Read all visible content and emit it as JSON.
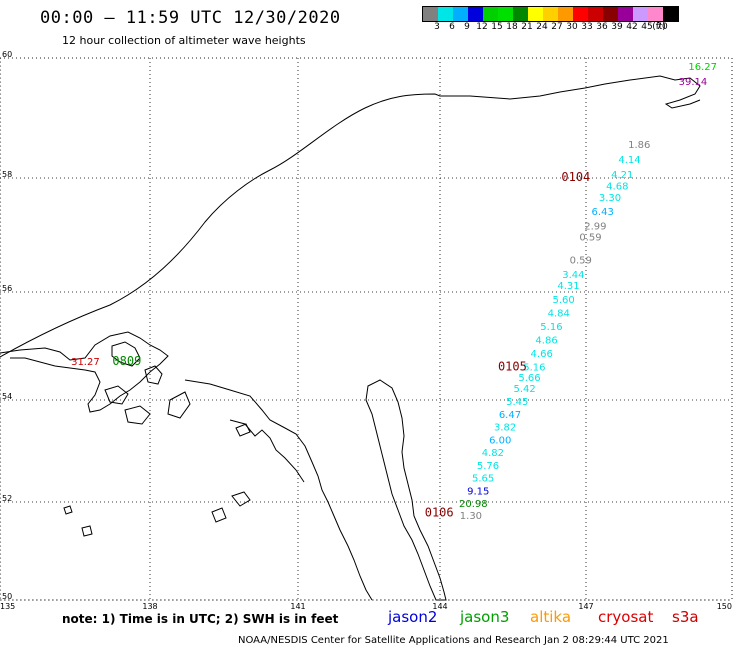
{
  "header": {
    "title": "00:00 — 11:59 UTC 12/30/2020",
    "subtitle": "12 hour collection of altimeter wave heights"
  },
  "legend": {
    "unit": "(ft)",
    "bins": [
      {
        "label": "3",
        "color": "#808080"
      },
      {
        "label": "6",
        "color": "#00e5e5"
      },
      {
        "label": "9",
        "color": "#00b0ff"
      },
      {
        "label": "12",
        "color": "#0000dd"
      },
      {
        "label": "15",
        "color": "#00d000"
      },
      {
        "label": "18",
        "color": "#00e000"
      },
      {
        "label": "21",
        "color": "#008800"
      },
      {
        "label": "24",
        "color": "#ffff00"
      },
      {
        "label": "27",
        "color": "#ffd000"
      },
      {
        "label": "30",
        "color": "#ff9900"
      },
      {
        "label": "33",
        "color": "#ff0000"
      },
      {
        "label": "36",
        "color": "#cc0000"
      },
      {
        "label": "39",
        "color": "#880000"
      },
      {
        "label": "42",
        "color": "#990099"
      },
      {
        "label": "45",
        "color": "#cc99ff"
      },
      {
        "label": "70",
        "color": "#ff88cc"
      },
      {
        "label": "",
        "color": "#000000"
      }
    ]
  },
  "axes": {
    "lon_ticks": [
      "135",
      "138",
      "141",
      "144",
      "147",
      "150"
    ],
    "lat_ticks": [
      "60",
      "58",
      "56",
      "54",
      "52",
      "50"
    ]
  },
  "tracks": [
    {
      "time": "0104",
      "color": "#880000",
      "lon": 146.8,
      "lat": 57.95
    },
    {
      "time": "0105",
      "color": "#880000",
      "lon": 145.5,
      "lat": 54.55
    },
    {
      "time": "0106",
      "color": "#880000",
      "lon": 144.0,
      "lat": 51.7
    },
    {
      "time": "0809",
      "color": "#008800",
      "lon": 137.6,
      "lat": 54.65
    }
  ],
  "observations": [
    {
      "value": "16.27",
      "color": "#00d000",
      "lon": 149.4,
      "lat": 59.8
    },
    {
      "value": "39.14",
      "color": "#990099",
      "lon": 149.2,
      "lat": 59.55
    },
    {
      "value": "1.86",
      "color": "#808080",
      "lon": 148.1,
      "lat": 58.5
    },
    {
      "value": "4.14",
      "color": "#00e5e5",
      "lon": 147.9,
      "lat": 58.25
    },
    {
      "value": "4.21",
      "color": "#00e5e5",
      "lon": 147.75,
      "lat": 58.0
    },
    {
      "value": "4.68",
      "color": "#00e5e5",
      "lon": 147.65,
      "lat": 57.8
    },
    {
      "value": "3.30",
      "color": "#00e5e5",
      "lon": 147.5,
      "lat": 57.6
    },
    {
      "value": "6.43",
      "color": "#00b0ff",
      "lon": 147.35,
      "lat": 57.35
    },
    {
      "value": "2.99",
      "color": "#808080",
      "lon": 147.2,
      "lat": 57.1
    },
    {
      "value": "0.59",
      "color": "#808080",
      "lon": 147.1,
      "lat": 56.9
    },
    {
      "value": "0.59",
      "color": "#808080",
      "lon": 146.9,
      "lat": 56.5
    },
    {
      "value": "3.44",
      "color": "#00e5e5",
      "lon": 146.75,
      "lat": 56.25
    },
    {
      "value": "4.31",
      "color": "#00e5e5",
      "lon": 146.65,
      "lat": 56.05
    },
    {
      "value": "5.60",
      "color": "#00e5e5",
      "lon": 146.55,
      "lat": 55.8
    },
    {
      "value": "4.84",
      "color": "#00e5e5",
      "lon": 146.45,
      "lat": 55.55
    },
    {
      "value": "5.16",
      "color": "#00e5e5",
      "lon": 146.3,
      "lat": 55.3
    },
    {
      "value": "4.86",
      "color": "#00e5e5",
      "lon": 146.2,
      "lat": 55.05
    },
    {
      "value": "4.66",
      "color": "#00e5e5",
      "lon": 146.1,
      "lat": 54.8
    },
    {
      "value": "5.16",
      "color": "#00e5e5",
      "lon": 145.95,
      "lat": 54.55
    },
    {
      "value": "5.66",
      "color": "#00e5e5",
      "lon": 145.85,
      "lat": 54.35
    },
    {
      "value": "5.42",
      "color": "#00e5e5",
      "lon": 145.75,
      "lat": 54.15
    },
    {
      "value": "5.45",
      "color": "#00e5e5",
      "lon": 145.6,
      "lat": 53.9
    },
    {
      "value": "6.47",
      "color": "#00b0ff",
      "lon": 145.45,
      "lat": 53.65
    },
    {
      "value": "3.82",
      "color": "#00e5e5",
      "lon": 145.35,
      "lat": 53.4
    },
    {
      "value": "6.00",
      "color": "#00b0ff",
      "lon": 145.25,
      "lat": 53.15
    },
    {
      "value": "4.82",
      "color": "#00e5e5",
      "lon": 145.1,
      "lat": 52.9
    },
    {
      "value": "5.76",
      "color": "#00e5e5",
      "lon": 145.0,
      "lat": 52.65
    },
    {
      "value": "5.65",
      "color": "#00e5e5",
      "lon": 144.9,
      "lat": 52.4
    },
    {
      "value": "9.15",
      "color": "#0000dd",
      "lon": 144.8,
      "lat": 52.15
    },
    {
      "value": "20.98",
      "color": "#008800",
      "lon": 144.7,
      "lat": 51.9
    },
    {
      "value": "1.30",
      "color": "#808080",
      "lon": 144.65,
      "lat": 51.65
    },
    {
      "value": "31.27",
      "color": "#cc0000",
      "lon": 136.75,
      "lat": 54.65
    }
  ],
  "footer": {
    "note": "note: 1) Time is in UTC; 2) SWH is in feet",
    "satellites": [
      {
        "name": "jason2",
        "color": "#0000dd"
      },
      {
        "name": "jason3",
        "color": "#00a000"
      },
      {
        "name": "altika",
        "color": "#ff9900"
      },
      {
        "name": "cryosat",
        "color": "#dd0000"
      },
      {
        "name": "s3a",
        "color": "#cc0000"
      }
    ],
    "credit": "NOAA/NESDIS Center for Satellite Applications and Research   Jan  2 08:29:44 UTC 2021"
  }
}
